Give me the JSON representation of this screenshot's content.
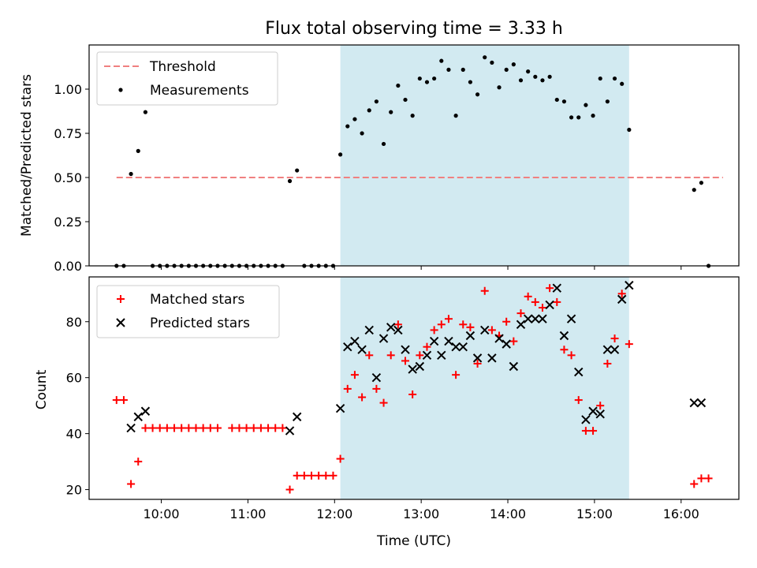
{
  "title": "Flux total observing time = 3.33 h",
  "colors": {
    "threshold": "#f08080",
    "measurement": "#000000",
    "matched": "#ff0000",
    "predicted": "#000000",
    "shade": "#add8e6"
  },
  "chart_data": [
    {
      "type": "scatter",
      "ylabel": "Matched/Predicted stars",
      "ylim": [
        0,
        1.25
      ],
      "yticks": [
        0,
        0.25,
        0.5,
        0.75,
        1.0
      ],
      "ytick_labels": [
        "0.00",
        "0.25",
        "0.50",
        "0.75",
        "1.00"
      ],
      "xlim": [
        "09:10",
        "16:40"
      ],
      "grid": false,
      "legend_position": "top-left",
      "shaded_span": [
        "12:04",
        "15:24"
      ],
      "threshold": {
        "name": "Threshold",
        "value": 0.5,
        "x": [
          "09:29",
          "16:29"
        ]
      },
      "series": [
        {
          "name": "Measurements",
          "points": [
            [
              "09:29",
              0
            ],
            [
              "09:34",
              0
            ],
            [
              "09:39",
              0.52
            ],
            [
              "09:44",
              0.65
            ],
            [
              "09:49",
              0.87
            ],
            [
              "09:54",
              0
            ],
            [
              "09:59",
              0
            ],
            [
              "10:04",
              0
            ],
            [
              "10:09",
              0
            ],
            [
              "10:14",
              0
            ],
            [
              "10:19",
              0
            ],
            [
              "10:24",
              0
            ],
            [
              "10:29",
              0
            ],
            [
              "10:34",
              0
            ],
            [
              "10:39",
              0
            ],
            [
              "10:44",
              0
            ],
            [
              "10:49",
              0
            ],
            [
              "10:54",
              0
            ],
            [
              "10:59",
              0
            ],
            [
              "11:04",
              0
            ],
            [
              "11:09",
              0
            ],
            [
              "11:14",
              0
            ],
            [
              "11:19",
              0
            ],
            [
              "11:24",
              0
            ],
            [
              "11:29",
              0.48
            ],
            [
              "11:34",
              0.54
            ],
            [
              "11:39",
              0
            ],
            [
              "11:44",
              0
            ],
            [
              "11:49",
              0
            ],
            [
              "11:54",
              0
            ],
            [
              "11:59",
              0
            ],
            [
              "12:04",
              0.63
            ],
            [
              "12:09",
              0.79
            ],
            [
              "12:14",
              0.83
            ],
            [
              "12:19",
              0.75
            ],
            [
              "12:24",
              0.88
            ],
            [
              "12:29",
              0.93
            ],
            [
              "12:34",
              0.69
            ],
            [
              "12:39",
              0.87
            ],
            [
              "12:44",
              1.02
            ],
            [
              "12:49",
              0.94
            ],
            [
              "12:54",
              0.85
            ],
            [
              "12:59",
              1.06
            ],
            [
              "13:04",
              1.04
            ],
            [
              "13:09",
              1.06
            ],
            [
              "13:14",
              1.16
            ],
            [
              "13:19",
              1.11
            ],
            [
              "13:24",
              0.85
            ],
            [
              "13:29",
              1.11
            ],
            [
              "13:34",
              1.04
            ],
            [
              "13:39",
              0.97
            ],
            [
              "13:44",
              1.18
            ],
            [
              "13:49",
              1.15
            ],
            [
              "13:54",
              1.01
            ],
            [
              "13:59",
              1.11
            ],
            [
              "14:04",
              1.14
            ],
            [
              "14:09",
              1.05
            ],
            [
              "14:14",
              1.1
            ],
            [
              "14:19",
              1.07
            ],
            [
              "14:24",
              1.05
            ],
            [
              "14:29",
              1.07
            ],
            [
              "14:34",
              0.94
            ],
            [
              "14:39",
              0.93
            ],
            [
              "14:44",
              0.84
            ],
            [
              "14:49",
              0.84
            ],
            [
              "14:54",
              0.91
            ],
            [
              "14:59",
              0.85
            ],
            [
              "15:04",
              1.06
            ],
            [
              "15:09",
              0.93
            ],
            [
              "15:14",
              1.06
            ],
            [
              "15:19",
              1.03
            ],
            [
              "15:24",
              0.77
            ],
            [
              "16:09",
              0.43
            ],
            [
              "16:14",
              0.47
            ],
            [
              "16:19",
              0
            ]
          ]
        }
      ]
    },
    {
      "type": "scatter",
      "xlabel": "Time (UTC)",
      "ylabel": "Count",
      "ylim": [
        16.5,
        96
      ],
      "yticks": [
        20,
        40,
        60,
        80
      ],
      "ytick_labels": [
        "20",
        "40",
        "60",
        "80"
      ],
      "xlim": [
        "09:10",
        "16:40"
      ],
      "xticks": [
        "10:00",
        "11:00",
        "12:00",
        "13:00",
        "14:00",
        "15:00",
        "16:00"
      ],
      "grid": false,
      "legend_position": "top-left",
      "shaded_span": [
        "12:04",
        "15:24"
      ],
      "series": [
        {
          "name": "Matched stars",
          "marker": "plus",
          "points": [
            [
              "09:29",
              52
            ],
            [
              "09:34",
              52
            ],
            [
              "09:39",
              22
            ],
            [
              "09:44",
              30
            ],
            [
              "09:49",
              42
            ],
            [
              "09:54",
              42
            ],
            [
              "09:59",
              42
            ],
            [
              "10:04",
              42
            ],
            [
              "10:09",
              42
            ],
            [
              "10:14",
              42
            ],
            [
              "10:19",
              42
            ],
            [
              "10:24",
              42
            ],
            [
              "10:29",
              42
            ],
            [
              "10:34",
              42
            ],
            [
              "10:39",
              42
            ],
            [
              "10:49",
              42
            ],
            [
              "10:54",
              42
            ],
            [
              "10:59",
              42
            ],
            [
              "11:04",
              42
            ],
            [
              "11:09",
              42
            ],
            [
              "11:14",
              42
            ],
            [
              "11:19",
              42
            ],
            [
              "11:24",
              42
            ],
            [
              "11:29",
              20
            ],
            [
              "11:34",
              25
            ],
            [
              "11:39",
              25
            ],
            [
              "11:44",
              25
            ],
            [
              "11:49",
              25
            ],
            [
              "11:54",
              25
            ],
            [
              "11:59",
              25
            ],
            [
              "12:04",
              31
            ],
            [
              "12:09",
              56
            ],
            [
              "12:14",
              61
            ],
            [
              "12:19",
              53
            ],
            [
              "12:24",
              68
            ],
            [
              "12:29",
              56
            ],
            [
              "12:34",
              51
            ],
            [
              "12:39",
              68
            ],
            [
              "12:44",
              79
            ],
            [
              "12:49",
              66
            ],
            [
              "12:54",
              54
            ],
            [
              "12:59",
              68
            ],
            [
              "13:04",
              71
            ],
            [
              "13:09",
              77
            ],
            [
              "13:14",
              79
            ],
            [
              "13:19",
              81
            ],
            [
              "13:24",
              61
            ],
            [
              "13:29",
              79
            ],
            [
              "13:34",
              78
            ],
            [
              "13:39",
              65
            ],
            [
              "13:44",
              91
            ],
            [
              "13:49",
              77
            ],
            [
              "13:54",
              75
            ],
            [
              "13:59",
              80
            ],
            [
              "14:04",
              73
            ],
            [
              "14:09",
              83
            ],
            [
              "14:14",
              89
            ],
            [
              "14:19",
              87
            ],
            [
              "14:24",
              85
            ],
            [
              "14:29",
              92
            ],
            [
              "14:34",
              87
            ],
            [
              "14:39",
              70
            ],
            [
              "14:44",
              68
            ],
            [
              "14:49",
              52
            ],
            [
              "14:54",
              41
            ],
            [
              "14:59",
              41
            ],
            [
              "15:04",
              50
            ],
            [
              "15:09",
              65
            ],
            [
              "15:14",
              74
            ],
            [
              "15:19",
              90
            ],
            [
              "15:24",
              72
            ],
            [
              "16:09",
              22
            ],
            [
              "16:14",
              24
            ],
            [
              "16:19",
              24
            ]
          ]
        },
        {
          "name": "Predicted stars",
          "marker": "x",
          "points": [
            [
              "09:39",
              42
            ],
            [
              "09:44",
              46
            ],
            [
              "09:49",
              48
            ],
            [
              "11:29",
              41
            ],
            [
              "11:34",
              46
            ],
            [
              "12:04",
              49
            ],
            [
              "12:09",
              71
            ],
            [
              "12:14",
              73
            ],
            [
              "12:19",
              70
            ],
            [
              "12:24",
              77
            ],
            [
              "12:29",
              60
            ],
            [
              "12:34",
              74
            ],
            [
              "12:39",
              78
            ],
            [
              "12:44",
              77
            ],
            [
              "12:49",
              70
            ],
            [
              "12:54",
              63
            ],
            [
              "12:59",
              64
            ],
            [
              "13:04",
              68
            ],
            [
              "13:09",
              73
            ],
            [
              "13:14",
              68
            ],
            [
              "13:19",
              73
            ],
            [
              "13:24",
              71
            ],
            [
              "13:29",
              71
            ],
            [
              "13:34",
              75
            ],
            [
              "13:39",
              67
            ],
            [
              "13:44",
              77
            ],
            [
              "13:49",
              67
            ],
            [
              "13:54",
              74
            ],
            [
              "13:59",
              72
            ],
            [
              "14:04",
              64
            ],
            [
              "14:09",
              79
            ],
            [
              "14:14",
              81
            ],
            [
              "14:19",
              81
            ],
            [
              "14:24",
              81
            ],
            [
              "14:29",
              86
            ],
            [
              "14:34",
              92
            ],
            [
              "14:39",
              75
            ],
            [
              "14:44",
              81
            ],
            [
              "14:49",
              62
            ],
            [
              "14:54",
              45
            ],
            [
              "14:59",
              48
            ],
            [
              "15:04",
              47
            ],
            [
              "15:09",
              70
            ],
            [
              "15:14",
              70
            ],
            [
              "15:19",
              88
            ],
            [
              "15:24",
              93
            ],
            [
              "16:09",
              51
            ],
            [
              "16:14",
              51
            ]
          ]
        }
      ]
    }
  ]
}
